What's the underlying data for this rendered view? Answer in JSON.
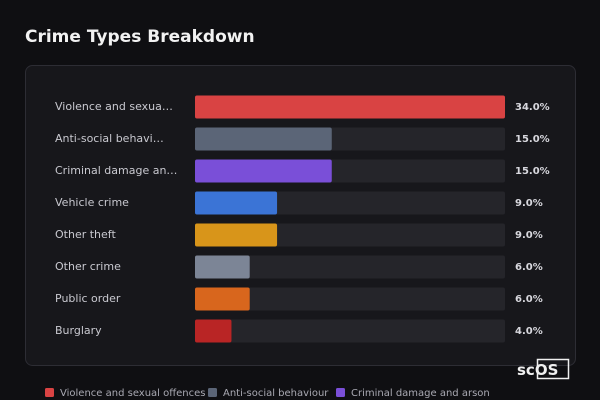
{
  "chart_data": {
    "type": "bar",
    "orientation": "horizontal",
    "title": "Crime Types Breakdown",
    "categories": [
      "Violence and sexua…",
      "Anti-social behavi…",
      "Criminal damage an…",
      "Vehicle crime",
      "Other theft",
      "Other crime",
      "Public order",
      "Burglary"
    ],
    "values": [
      34,
      15,
      15,
      9,
      9,
      6,
      6,
      4
    ],
    "value_labels": [
      "34.0%",
      "15.0%",
      "15.0%",
      "9.0%",
      "9.0%",
      "6.0%",
      "6.0%",
      "4.0%"
    ],
    "colors": [
      "#d94343",
      "#5b6577",
      "#7a4fd8",
      "#3b74d6",
      "#d8951a",
      "#7c8596",
      "#d8661d",
      "#b92525"
    ],
    "xlim": [
      0,
      34
    ],
    "legend": [
      "Violence and sexual offences",
      "Anti-social behaviour",
      "Criminal damage and arson"
    ]
  },
  "watermark": {
    "prefix": "sc",
    "boxed": "OS"
  }
}
